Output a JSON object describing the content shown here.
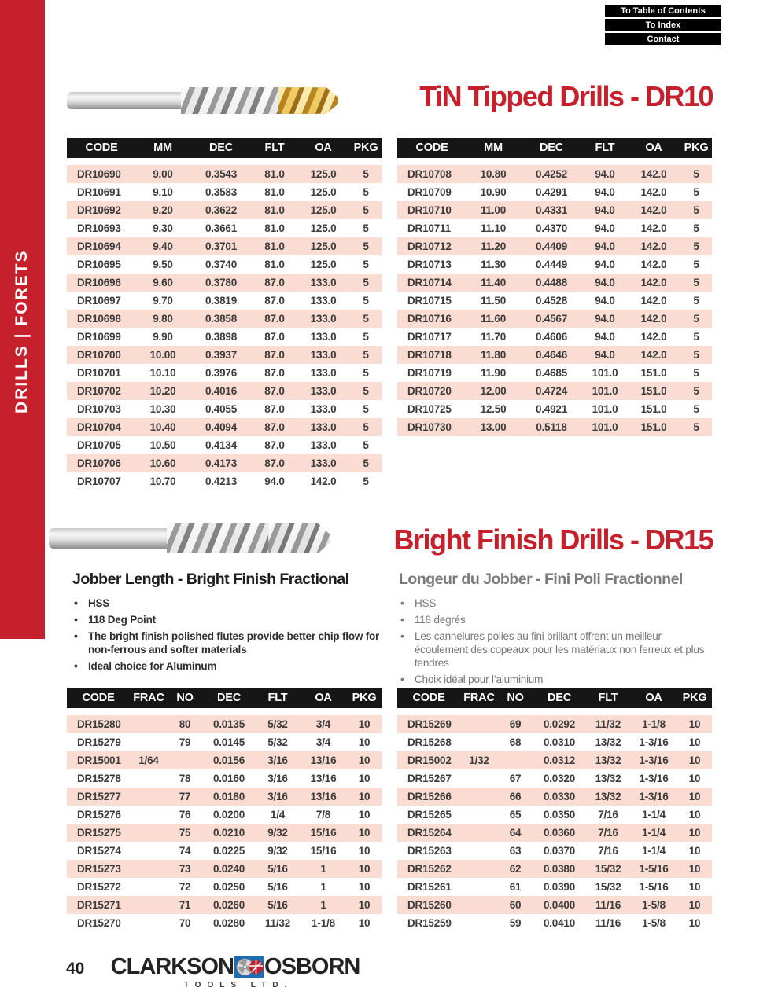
{
  "sidebar": {
    "label": "DRILLS | FORETS"
  },
  "nav": {
    "buttons": [
      "To Table of Contents",
      "To Index",
      "Contact"
    ]
  },
  "colors": {
    "accent_red": "#c5202b",
    "row_pink": "#fbdcd2",
    "header_black": "#161616",
    "french_gray": "#7a7a7a"
  },
  "dr10": {
    "title": "TiN Tipped Drills - DR10",
    "columns": [
      "CODE",
      "MM",
      "DEC",
      "FLT",
      "OA",
      "PKG"
    ],
    "left_rows": [
      [
        "DR10690",
        "9.00",
        "0.3543",
        "81.0",
        "125.0",
        "5"
      ],
      [
        "DR10691",
        "9.10",
        "0.3583",
        "81.0",
        "125.0",
        "5"
      ],
      [
        "DR10692",
        "9.20",
        "0.3622",
        "81.0",
        "125.0",
        "5"
      ],
      [
        "DR10693",
        "9.30",
        "0.3661",
        "81.0",
        "125.0",
        "5"
      ],
      [
        "DR10694",
        "9.40",
        "0.3701",
        "81.0",
        "125.0",
        "5"
      ],
      [
        "DR10695",
        "9.50",
        "0.3740",
        "81.0",
        "125.0",
        "5"
      ],
      [
        "DR10696",
        "9.60",
        "0.3780",
        "87.0",
        "133.0",
        "5"
      ],
      [
        "DR10697",
        "9.70",
        "0.3819",
        "87.0",
        "133.0",
        "5"
      ],
      [
        "DR10698",
        "9.80",
        "0.3858",
        "87.0",
        "133.0",
        "5"
      ],
      [
        "DR10699",
        "9.90",
        "0.3898",
        "87.0",
        "133.0",
        "5"
      ],
      [
        "DR10700",
        "10.00",
        "0.3937",
        "87.0",
        "133.0",
        "5"
      ],
      [
        "DR10701",
        "10.10",
        "0.3976",
        "87.0",
        "133.0",
        "5"
      ],
      [
        "DR10702",
        "10.20",
        "0.4016",
        "87.0",
        "133.0",
        "5"
      ],
      [
        "DR10703",
        "10.30",
        "0.4055",
        "87.0",
        "133.0",
        "5"
      ],
      [
        "DR10704",
        "10.40",
        "0.4094",
        "87.0",
        "133.0",
        "5"
      ],
      [
        "DR10705",
        "10.50",
        "0.4134",
        "87.0",
        "133.0",
        "5"
      ],
      [
        "DR10706",
        "10.60",
        "0.4173",
        "87.0",
        "133.0",
        "5"
      ],
      [
        "DR10707",
        "10.70",
        "0.4213",
        "94.0",
        "142.0",
        "5"
      ]
    ],
    "right_rows": [
      [
        "DR10708",
        "10.80",
        "0.4252",
        "94.0",
        "142.0",
        "5"
      ],
      [
        "DR10709",
        "10.90",
        "0.4291",
        "94.0",
        "142.0",
        "5"
      ],
      [
        "DR10710",
        "11.00",
        "0.4331",
        "94.0",
        "142.0",
        "5"
      ],
      [
        "DR10711",
        "11.10",
        "0.4370",
        "94.0",
        "142.0",
        "5"
      ],
      [
        "DR10712",
        "11.20",
        "0.4409",
        "94.0",
        "142.0",
        "5"
      ],
      [
        "DR10713",
        "11.30",
        "0.4449",
        "94.0",
        "142.0",
        "5"
      ],
      [
        "DR10714",
        "11.40",
        "0.4488",
        "94.0",
        "142.0",
        "5"
      ],
      [
        "DR10715",
        "11.50",
        "0.4528",
        "94.0",
        "142.0",
        "5"
      ],
      [
        "DR10716",
        "11.60",
        "0.4567",
        "94.0",
        "142.0",
        "5"
      ],
      [
        "DR10717",
        "11.70",
        "0.4606",
        "94.0",
        "142.0",
        "5"
      ],
      [
        "DR10718",
        "11.80",
        "0.4646",
        "94.0",
        "142.0",
        "5"
      ],
      [
        "DR10719",
        "11.90",
        "0.4685",
        "101.0",
        "151.0",
        "5"
      ],
      [
        "DR10720",
        "12.00",
        "0.4724",
        "101.0",
        "151.0",
        "5"
      ],
      [
        "DR10725",
        "12.50",
        "0.4921",
        "101.0",
        "151.0",
        "5"
      ],
      [
        "DR10730",
        "13.00",
        "0.5118",
        "101.0",
        "151.0",
        "5"
      ]
    ]
  },
  "dr15": {
    "title": "Bright Finish Drills - DR15",
    "en": {
      "heading": "Jobber Length - Bright Finish Fractional",
      "bullets": [
        "HSS",
        "118 Deg Point",
        "The bright finish polished flutes provide better chip flow for non-ferrous and softer materials",
        "Ideal choice for Aluminum"
      ]
    },
    "fr": {
      "heading": "Longeur du Jobber - Fini Poli Fractionnel",
      "bullets": [
        "HSS",
        "118 degrés",
        "Les cannelures polies au fini brillant offrent un meilleur écoulement des copeaux pour les matériaux non ferreux et plus tendres",
        "Choix idéal pour l’aluminium"
      ]
    },
    "columns": [
      "CODE",
      "FRAC",
      "NO",
      "DEC",
      "FLT",
      "OA",
      "PKG"
    ],
    "left_rows": [
      [
        "DR15280",
        "",
        "80",
        "0.0135",
        "5/32",
        "3/4",
        "10"
      ],
      [
        "DR15279",
        "",
        "79",
        "0.0145",
        "5/32",
        "3/4",
        "10"
      ],
      [
        "DR15001",
        "1/64",
        "",
        "0.0156",
        "3/16",
        "13/16",
        "10"
      ],
      [
        "DR15278",
        "",
        "78",
        "0.0160",
        "3/16",
        "13/16",
        "10"
      ],
      [
        "DR15277",
        "",
        "77",
        "0.0180",
        "3/16",
        "13/16",
        "10"
      ],
      [
        "DR15276",
        "",
        "76",
        "0.0200",
        "1/4",
        "7/8",
        "10"
      ],
      [
        "DR15275",
        "",
        "75",
        "0.0210",
        "9/32",
        "15/16",
        "10"
      ],
      [
        "DR15274",
        "",
        "74",
        "0.0225",
        "9/32",
        "15/16",
        "10"
      ],
      [
        "DR15273",
        "",
        "73",
        "0.0240",
        "5/16",
        "1",
        "10"
      ],
      [
        "DR15272",
        "",
        "72",
        "0.0250",
        "5/16",
        "1",
        "10"
      ],
      [
        "DR15271",
        "",
        "71",
        "0.0260",
        "5/16",
        "1",
        "10"
      ],
      [
        "DR15270",
        "",
        "70",
        "0.0280",
        "11/32",
        "1-1/8",
        "10"
      ]
    ],
    "right_rows": [
      [
        "DR15269",
        "",
        "69",
        "0.0292",
        "11/32",
        "1-1/8",
        "10"
      ],
      [
        "DR15268",
        "",
        "68",
        "0.0310",
        "13/32",
        "1-3/16",
        "10"
      ],
      [
        "DR15002",
        "1/32",
        "",
        "0.0312",
        "13/32",
        "1-3/16",
        "10"
      ],
      [
        "DR15267",
        "",
        "67",
        "0.0320",
        "13/32",
        "1-3/16",
        "10"
      ],
      [
        "DR15266",
        "",
        "66",
        "0.0330",
        "13/32",
        "1-3/16",
        "10"
      ],
      [
        "DR15265",
        "",
        "65",
        "0.0350",
        "7/16",
        "1-1/4",
        "10"
      ],
      [
        "DR15264",
        "",
        "64",
        "0.0360",
        "7/16",
        "1-1/4",
        "10"
      ],
      [
        "DR15263",
        "",
        "63",
        "0.0370",
        "7/16",
        "1-1/4",
        "10"
      ],
      [
        "DR15262",
        "",
        "62",
        "0.0380",
        "15/32",
        "1-5/16",
        "10"
      ],
      [
        "DR15261",
        "",
        "61",
        "0.0390",
        "15/32",
        "1-5/16",
        "10"
      ],
      [
        "DR15260",
        "",
        "60",
        "0.0400",
        "11/16",
        "1-5/8",
        "10"
      ],
      [
        "DR15259",
        "",
        "59",
        "0.0410",
        "11/16",
        "1-5/8",
        "10"
      ]
    ]
  },
  "footer": {
    "page_number": "40",
    "brand_left": "CLARKSON",
    "brand_right": "OSBORN",
    "brand_sub": "TOOLS LTD."
  }
}
